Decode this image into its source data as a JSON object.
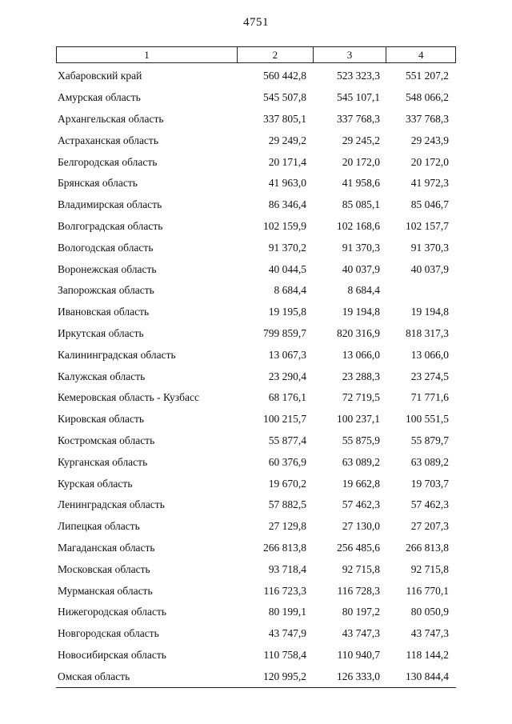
{
  "page": {
    "number": "4751"
  },
  "table": {
    "header": [
      "1",
      "2",
      "3",
      "4"
    ],
    "rows": [
      [
        "Хабаровский край",
        "560 442,8",
        "523 323,3",
        "551 207,2"
      ],
      [
        "Амурская область",
        "545 507,8",
        "545 107,1",
        "548 066,2"
      ],
      [
        "Архангельская область",
        "337 805,1",
        "337 768,3",
        "337 768,3"
      ],
      [
        "Астраханская область",
        "29 249,2",
        "29 245,2",
        "29 243,9"
      ],
      [
        "Белгородская область",
        "20 171,4",
        "20 172,0",
        "20 172,0"
      ],
      [
        "Брянская область",
        "41 963,0",
        "41 958,6",
        "41 972,3"
      ],
      [
        "Владимирская область",
        "86 346,4",
        "85 085,1",
        "85 046,7"
      ],
      [
        "Волгоградская область",
        "102 159,9",
        "102 168,6",
        "102 157,7"
      ],
      [
        "Вологодская область",
        "91 370,2",
        "91 370,3",
        "91 370,3"
      ],
      [
        "Воронежская область",
        "40 044,5",
        "40 037,9",
        "40 037,9"
      ],
      [
        "Запорожская область",
        "8 684,4",
        "8 684,4",
        ""
      ],
      [
        "Ивановская область",
        "19 195,8",
        "19 194,8",
        "19 194,8"
      ],
      [
        "Иркутская область",
        "799 859,7",
        "820 316,9",
        "818 317,3"
      ],
      [
        "Калининградская область",
        "13 067,3",
        "13 066,0",
        "13 066,0"
      ],
      [
        "Калужская область",
        "23 290,4",
        "23 288,3",
        "23 274,5"
      ],
      [
        "Кемеровская область - Кузбасс",
        "68 176,1",
        "72 719,5",
        "71 771,6"
      ],
      [
        "Кировская область",
        "100 215,7",
        "100 237,1",
        "100 551,5"
      ],
      [
        "Костромская область",
        "55 877,4",
        "55 875,9",
        "55 879,7"
      ],
      [
        "Курганская область",
        "60 376,9",
        "63 089,2",
        "63 089,2"
      ],
      [
        "Курская область",
        "19 670,2",
        "19 662,8",
        "19 703,7"
      ],
      [
        "Ленинградская область",
        "57 882,5",
        "57 462,3",
        "57 462,3"
      ],
      [
        "Липецкая область",
        "27 129,8",
        "27 130,0",
        "27 207,3"
      ],
      [
        "Магаданская область",
        "266 813,8",
        "256 485,6",
        "266 813,8"
      ],
      [
        "Московская область",
        "93 718,4",
        "92 715,8",
        "92 715,8"
      ],
      [
        "Мурманская область",
        "116 723,3",
        "116 728,3",
        "116 770,1"
      ],
      [
        "Нижегородская область",
        "80 199,1",
        "80 197,2",
        "80 050,9"
      ],
      [
        "Новгородская область",
        "43 747,9",
        "43 747,3",
        "43 747,3"
      ],
      [
        "Новосибирская область",
        "110 758,4",
        "110 940,7",
        "118 144,2"
      ],
      [
        "Омская область",
        "120 995,2",
        "126 333,0",
        "130 844,4"
      ]
    ]
  }
}
